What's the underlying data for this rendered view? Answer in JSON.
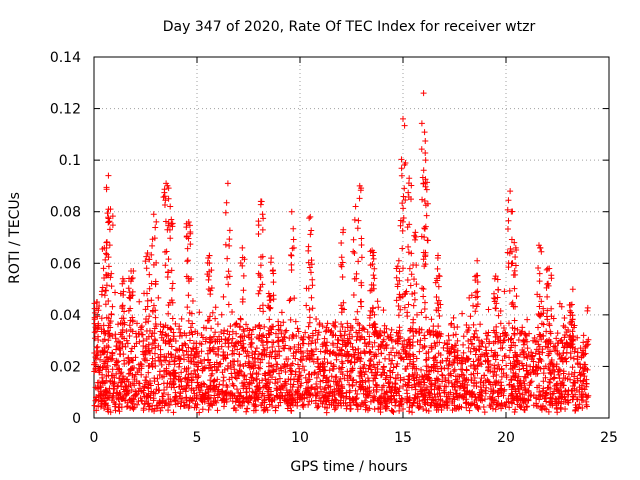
{
  "chart_data": {
    "type": "scatter",
    "title": "Day 347 of 2020, Rate Of TEC Index for receiver wtzr",
    "xlabel": "GPS time / hours",
    "ylabel": "ROTI / TECUs",
    "xlim": [
      0,
      25
    ],
    "ylim": [
      0,
      0.14
    ],
    "xticks": [
      0,
      5,
      10,
      15,
      20,
      25
    ],
    "yticks": [
      0,
      0.02,
      0.04,
      0.06,
      0.08,
      0.1,
      0.12,
      0.14
    ],
    "xtick_labels": [
      "0",
      "5",
      "10",
      "15",
      "20",
      "25"
    ],
    "ytick_labels": [
      "0",
      "0.02",
      "0.04",
      "0.06",
      "0.08",
      "0.1",
      "0.12",
      "0.14"
    ],
    "grid": true,
    "marker": "+",
    "color": "#ff0000",
    "series": [
      {
        "name": "ROTI",
        "x_range": [
          0,
          24
        ],
        "typical_range": [
          0.005,
          0.035
        ],
        "peaks": [
          {
            "x": 0.15,
            "y": 0.045
          },
          {
            "x": 0.5,
            "y": 0.066
          },
          {
            "x": 0.7,
            "y": 0.094
          },
          {
            "x": 0.8,
            "y": 0.081
          },
          {
            "x": 1.4,
            "y": 0.054
          },
          {
            "x": 1.8,
            "y": 0.057
          },
          {
            "x": 2.6,
            "y": 0.064
          },
          {
            "x": 2.9,
            "y": 0.079
          },
          {
            "x": 3.5,
            "y": 0.091
          },
          {
            "x": 3.7,
            "y": 0.082
          },
          {
            "x": 4.6,
            "y": 0.076
          },
          {
            "x": 5.6,
            "y": 0.063
          },
          {
            "x": 6.5,
            "y": 0.091
          },
          {
            "x": 7.2,
            "y": 0.066
          },
          {
            "x": 8.1,
            "y": 0.084
          },
          {
            "x": 8.6,
            "y": 0.062
          },
          {
            "x": 9.6,
            "y": 0.08
          },
          {
            "x": 10.5,
            "y": 0.078
          },
          {
            "x": 12.1,
            "y": 0.073
          },
          {
            "x": 12.7,
            "y": 0.082
          },
          {
            "x": 12.9,
            "y": 0.09
          },
          {
            "x": 13.5,
            "y": 0.065
          },
          {
            "x": 14.8,
            "y": 0.061
          },
          {
            "x": 15.0,
            "y": 0.116
          },
          {
            "x": 15.3,
            "y": 0.093
          },
          {
            "x": 15.6,
            "y": 0.072
          },
          {
            "x": 16.0,
            "y": 0.126
          },
          {
            "x": 16.1,
            "y": 0.1
          },
          {
            "x": 16.7,
            "y": 0.063
          },
          {
            "x": 18.6,
            "y": 0.061
          },
          {
            "x": 19.5,
            "y": 0.055
          },
          {
            "x": 20.2,
            "y": 0.088
          },
          {
            "x": 20.4,
            "y": 0.068
          },
          {
            "x": 21.6,
            "y": 0.067
          },
          {
            "x": 22.1,
            "y": 0.058
          },
          {
            "x": 23.2,
            "y": 0.044
          }
        ]
      }
    ]
  }
}
